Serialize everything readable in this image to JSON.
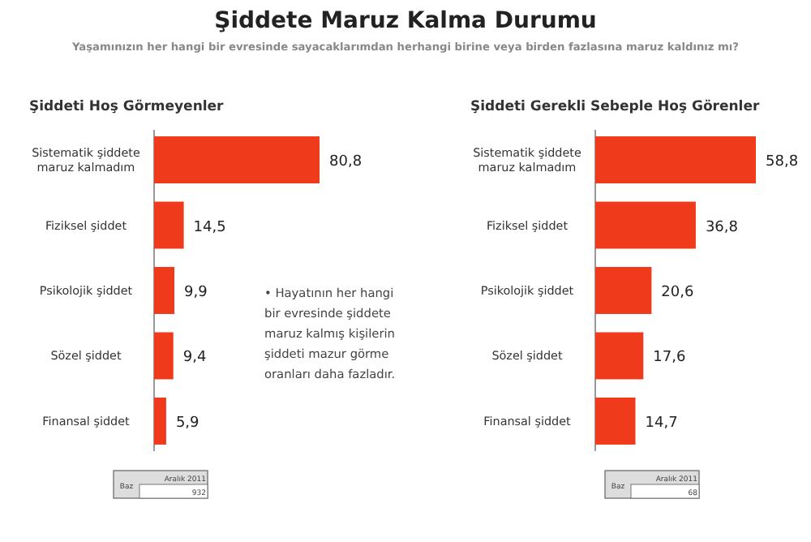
{
  "chart_data": [
    {
      "type": "other",
      "title": "Şiddete Maruz Kalma Durumu",
      "subtitle": "Yaşamınızın her hangi bir evresinde sayacaklarımdan herhangi birine veya birden fazlasına maruz kaldınız mı?"
    },
    {
      "type": "bar",
      "orientation": "horizontal",
      "title": "Şiddeti Hoş Görmeyenler",
      "categories": [
        "Sistematik şiddete maruz kalmadım",
        "Fiziksel şiddet",
        "Psikolojik şiddet",
        "Sözel şiddet",
        "Finansal şiddet"
      ],
      "values": [
        80.8,
        14.5,
        9.9,
        9.4,
        5.9
      ],
      "color": "#f03a1c",
      "value_labels": [
        "80,8",
        "14,5",
        "9,9",
        "9,4",
        "5,9"
      ],
      "annotations": [
        "• Hayatının her hangi bir evresinde şiddete maruz kalmış kişilerin şiddeti mazur görme oranları daha fazladır.",
        "Baz",
        "Aralık 2011",
        "932"
      ]
    },
    {
      "type": "bar",
      "orientation": "horizontal",
      "title": "Şiddeti Gerekli Sebeple Hoş Görenler",
      "categories": [
        "Sistematik şiddete maruz kalmadım",
        "Fiziksel şiddet",
        "Psikolojik şiddet",
        "Sözel şiddet",
        "Finansal şiddet"
      ],
      "values": [
        58.8,
        36.8,
        20.6,
        17.6,
        14.7
      ],
      "color": "#f03a1c",
      "value_labels": [
        "58,8",
        "36,8",
        "20,6",
        "17,6",
        "14,7"
      ],
      "annotations": [
        "Baz",
        "Aralık 2011",
        "68"
      ]
    }
  ]
}
